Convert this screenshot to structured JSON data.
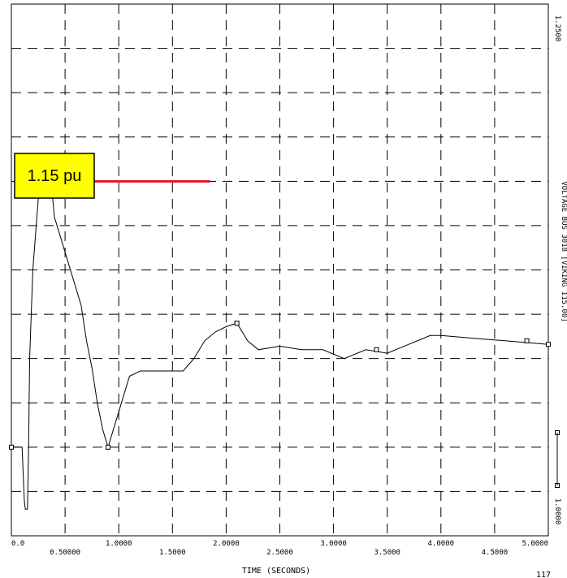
{
  "chart_data": {
    "type": "line",
    "xlabel": "TIME (SECONDS)",
    "xlim": [
      0,
      5.0
    ],
    "ylim": [
      0.95,
      1.25
    ],
    "x_ticks": [
      {
        "value": 0.0,
        "label": "0.0"
      },
      {
        "value": 0.5,
        "label": "0.50000"
      },
      {
        "value": 1.0,
        "label": "1.0000"
      },
      {
        "value": 1.5,
        "label": "1.5000"
      },
      {
        "value": 2.0,
        "label": "2.0000"
      },
      {
        "value": 2.5,
        "label": "2.5000"
      },
      {
        "value": 3.0,
        "label": "3.0000"
      },
      {
        "value": 3.5,
        "label": "3.5000"
      },
      {
        "value": 4.0,
        "label": "4.0000"
      },
      {
        "value": 4.5,
        "label": "4.5000"
      },
      {
        "value": 5.0,
        "label": "5.0000"
      }
    ],
    "y_tick_labels": {
      "top": "1.2500",
      "bottom": "1.0000"
    },
    "grid": true,
    "right_side_label": "VOLTAGE BUS 3018 [VIKING 115.00]",
    "corner_label": "117",
    "series": [
      {
        "color": "#000000",
        "x": [
          0.0,
          0.1,
          0.12,
          0.13,
          0.15,
          0.16,
          0.17,
          0.2,
          0.25,
          0.3,
          0.35,
          0.37,
          0.4,
          0.45,
          0.5,
          0.55,
          0.6,
          0.65,
          0.7,
          0.75,
          0.8,
          0.85,
          0.9,
          1.0,
          1.1,
          1.2,
          1.4,
          1.6,
          1.7,
          1.8,
          1.9,
          2.0,
          2.1,
          2.2,
          2.3,
          2.5,
          2.7,
          2.9,
          3.1,
          3.3,
          3.5,
          3.7,
          3.9,
          4.0,
          4.2,
          4.4,
          4.6,
          4.8,
          5.0
        ],
        "y": [
          1.0,
          1.0,
          0.97,
          0.965,
          0.965,
          1.0,
          1.05,
          1.1,
          1.14,
          1.155,
          1.155,
          1.15,
          1.13,
          1.12,
          1.11,
          1.1,
          1.09,
          1.08,
          1.06,
          1.045,
          1.025,
          1.01,
          1.0,
          1.02,
          1.04,
          1.043,
          1.043,
          1.043,
          1.05,
          1.06,
          1.065,
          1.068,
          1.07,
          1.06,
          1.055,
          1.057,
          1.055,
          1.055,
          1.05,
          1.055,
          1.053,
          1.058,
          1.063,
          1.063,
          1.062,
          1.061,
          1.06,
          1.059,
          1.058
        ]
      }
    ],
    "markers": [
      {
        "x": 0.0,
        "y": 1.0
      },
      {
        "x": 0.9,
        "y": 1.0
      },
      {
        "x": 2.1,
        "y": 1.07
      },
      {
        "x": 3.4,
        "y": 1.055
      },
      {
        "x": 4.8,
        "y": 1.06
      },
      {
        "x": 5.0,
        "y": 1.058
      }
    ],
    "threshold": {
      "label": "1.15 pu",
      "y": 1.15,
      "x_start": 0.08,
      "x_end": 1.85,
      "line_color": "#e8141e",
      "label_bg": "#ffff00"
    }
  }
}
